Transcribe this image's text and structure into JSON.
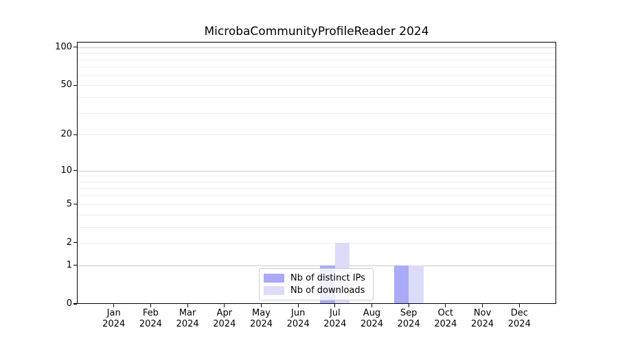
{
  "chart_data": {
    "type": "bar",
    "title": "MicrobaCommunityProfileReader 2024",
    "categories": [
      "Jan",
      "Feb",
      "Mar",
      "Apr",
      "May",
      "Jun",
      "Jul",
      "Aug",
      "Sep",
      "Oct",
      "Nov",
      "Dec"
    ],
    "year_label": "2024",
    "series": [
      {
        "name": "Nb of distinct IPs",
        "color": "#aaaaf6",
        "values": [
          0,
          0,
          0,
          0,
          0,
          0,
          1,
          0,
          1,
          0,
          0,
          0
        ]
      },
      {
        "name": "Nb of downloads",
        "color": "#dcdcf8",
        "values": [
          0,
          0,
          0,
          0,
          0,
          0,
          2,
          0,
          1,
          0,
          0,
          0
        ]
      }
    ],
    "xlabel": "",
    "ylabel": "",
    "y_scale": "log10(1+v)",
    "ylim": [
      0,
      110
    ],
    "y_ticks": [
      0,
      1,
      2,
      5,
      10,
      20,
      50,
      100
    ],
    "y_major_gridlines": [
      1,
      10,
      100
    ],
    "y_minor_gridlines": [
      2,
      3,
      4,
      5,
      6,
      7,
      8,
      9,
      20,
      30,
      40,
      50,
      60,
      70,
      80,
      90
    ],
    "grid": "horizontal",
    "legend_position": "lower center (inside plot)",
    "bar_group_width_fraction": 0.8
  }
}
